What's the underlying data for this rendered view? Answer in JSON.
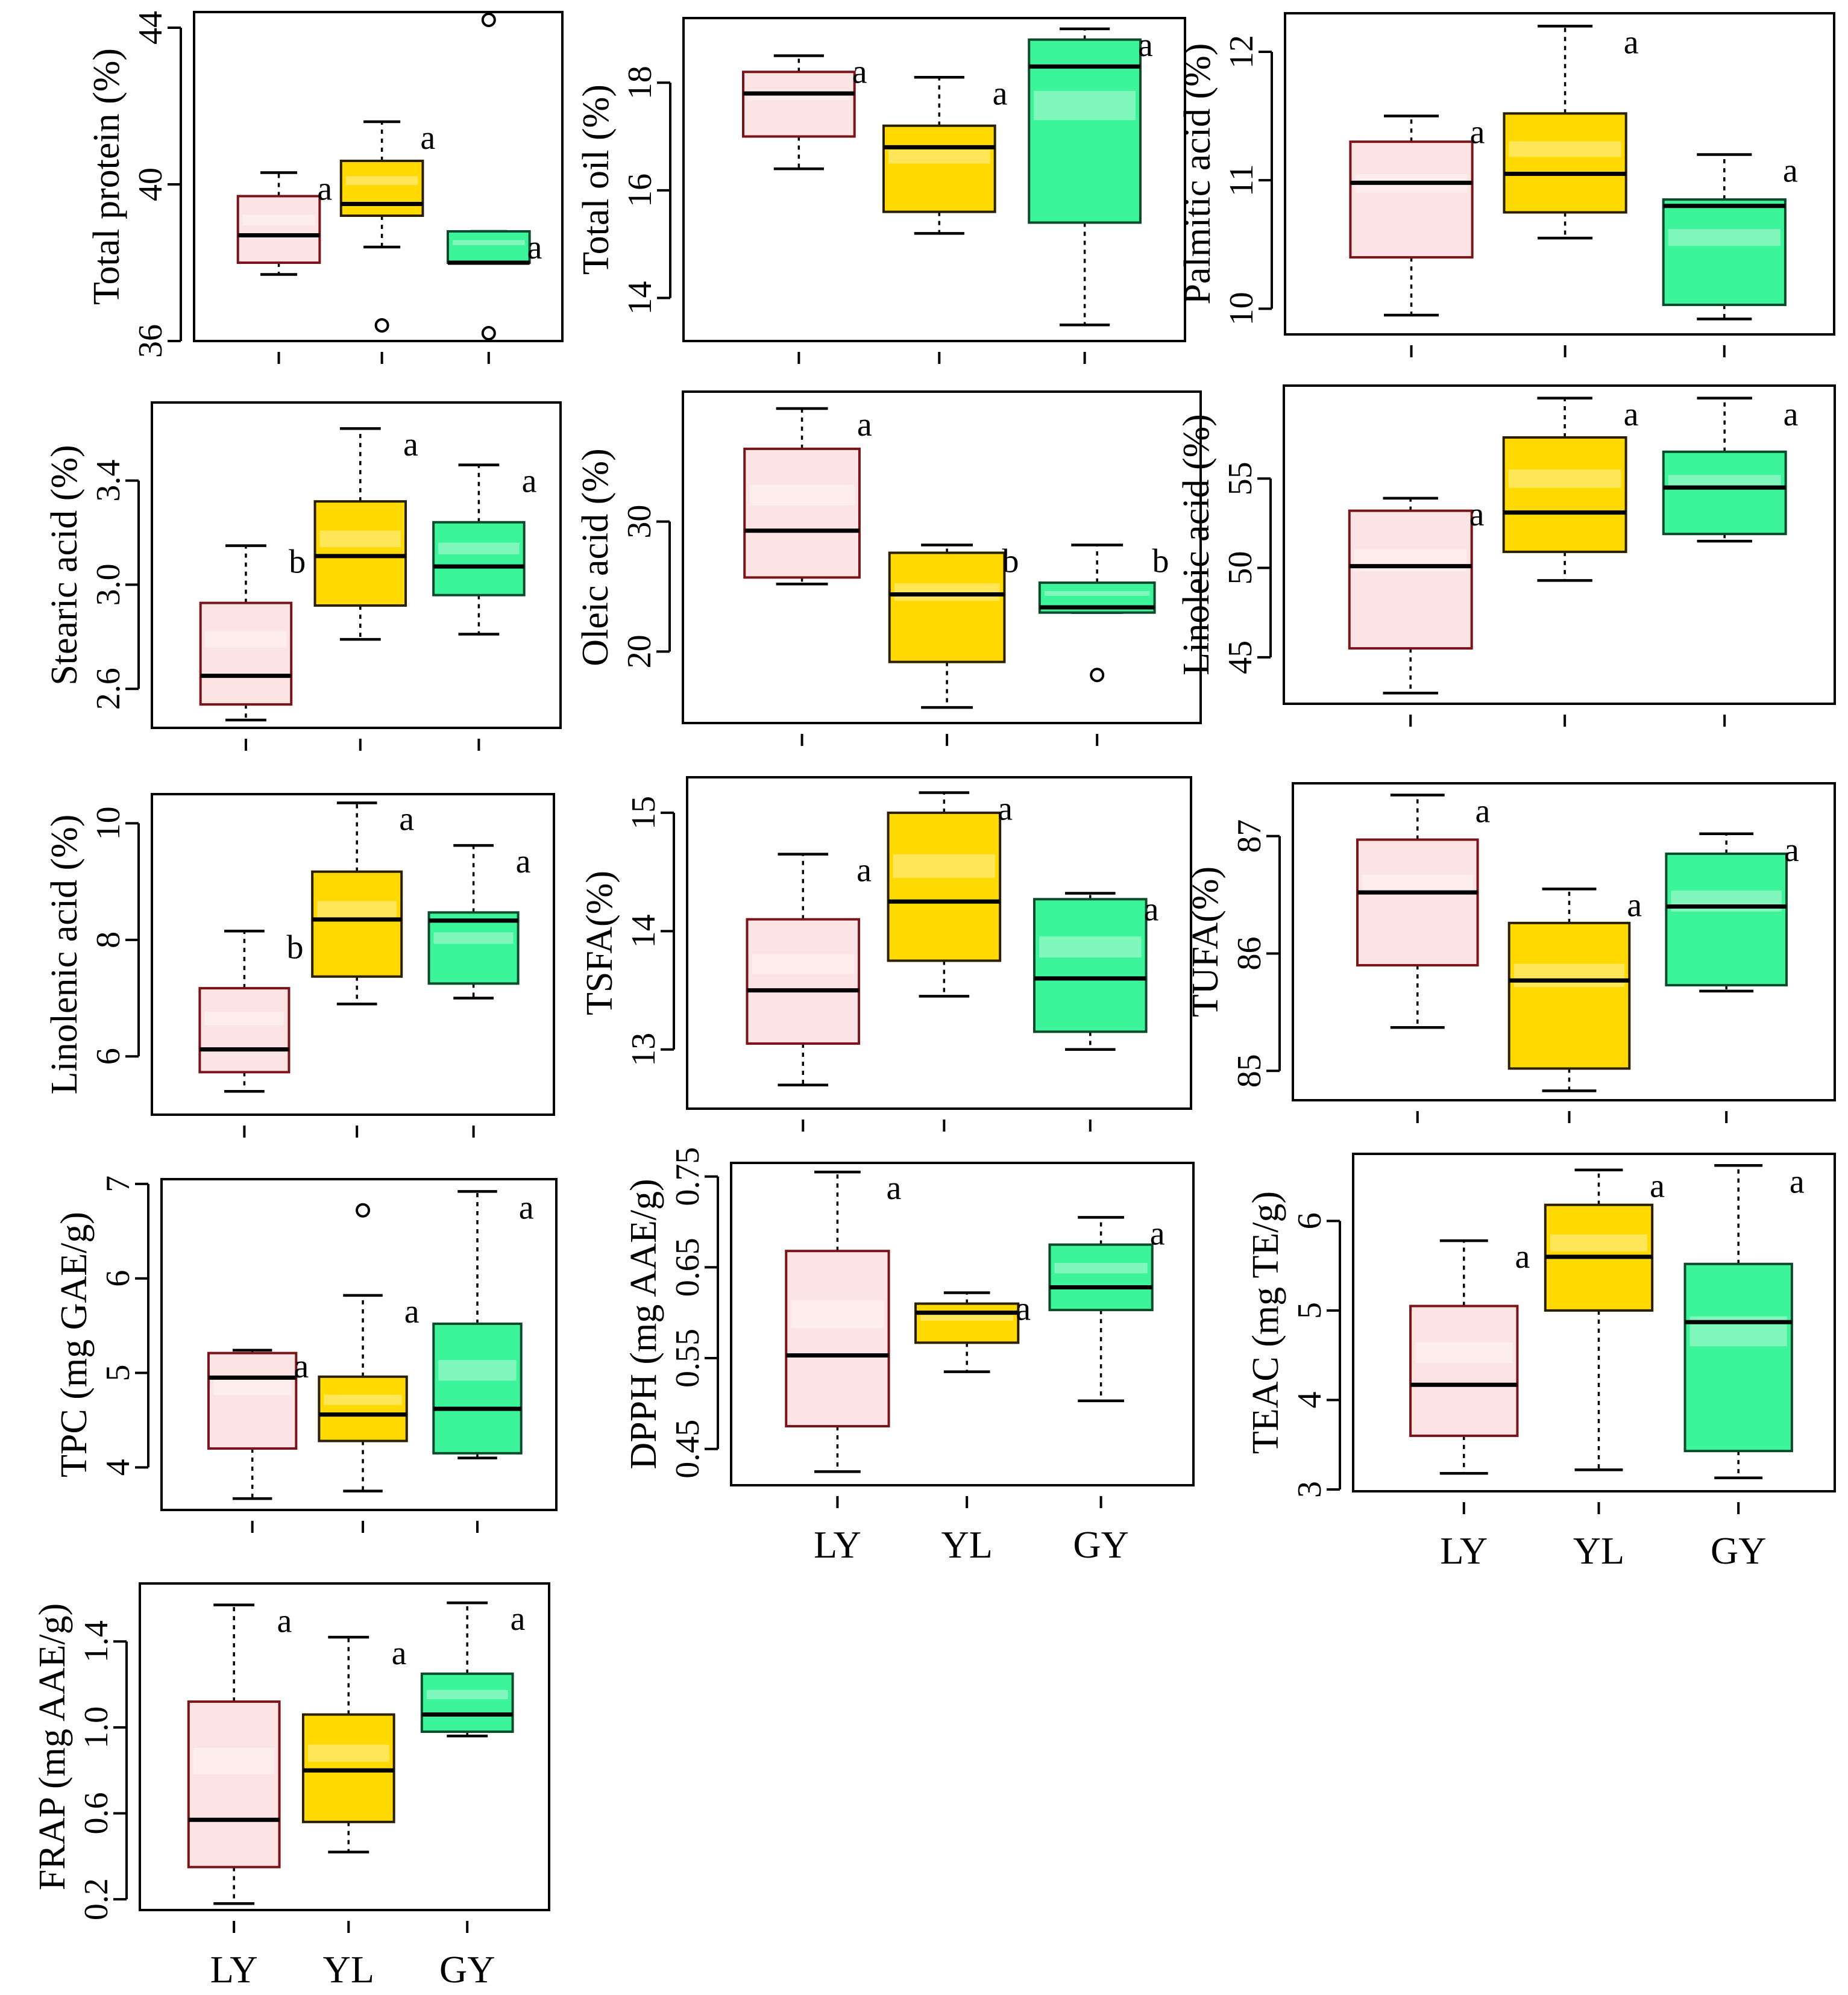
{
  "groups": [
    "LY",
    "YL",
    "GY"
  ],
  "colors": {
    "LY": {
      "fill": "#fde4e4",
      "stroke": "#7a1418"
    },
    "YL": {
      "fill": "#ffd900",
      "stroke": "#2a2000"
    },
    "GY": {
      "fill": "#3cf59a",
      "stroke": "#0b4a2a"
    }
  },
  "chart_data": [
    {
      "type": "box",
      "ylabel": "Total protein (%)",
      "yticks": [
        36,
        40,
        44
      ],
      "ylim": [
        36,
        44.4
      ],
      "show_x_labels": false,
      "boxes": [
        {
          "group": "LY",
          "whisker_low": 37.7,
          "q1": 38.0,
          "median": 38.7,
          "q3": 39.7,
          "whisker_high": 40.3,
          "outliers": [],
          "letter": "a"
        },
        {
          "group": "YL",
          "whisker_low": 38.4,
          "q1": 39.2,
          "median": 39.5,
          "q3": 40.6,
          "whisker_high": 41.6,
          "outliers": [
            36.4
          ],
          "letter": "a"
        },
        {
          "group": "GY",
          "whisker_low": 38.0,
          "q1": 38.0,
          "median": 38.0,
          "q3": 38.8,
          "whisker_high": 38.8,
          "outliers": [
            36.2,
            44.2
          ],
          "letter": "a"
        }
      ]
    },
    {
      "type": "box",
      "ylabel": "Total oil (%)",
      "yticks": [
        14,
        16,
        18
      ],
      "ylim": [
        13.2,
        19.2
      ],
      "show_x_labels": false,
      "boxes": [
        {
          "group": "LY",
          "whisker_low": 16.4,
          "q1": 17.0,
          "median": 17.8,
          "q3": 18.2,
          "whisker_high": 18.5,
          "outliers": [],
          "letter": "a"
        },
        {
          "group": "YL",
          "whisker_low": 15.2,
          "q1": 15.6,
          "median": 16.8,
          "q3": 17.2,
          "whisker_high": 18.1,
          "outliers": [],
          "letter": "a"
        },
        {
          "group": "GY",
          "whisker_low": 13.5,
          "q1": 15.4,
          "median": 18.3,
          "q3": 18.8,
          "whisker_high": 19.0,
          "outliers": [],
          "letter": "a"
        }
      ]
    },
    {
      "type": "box",
      "ylabel": "Palmitic acid (%)",
      "yticks": [
        10,
        11,
        12
      ],
      "ylim": [
        9.8,
        12.3
      ],
      "show_x_labels": false,
      "boxes": [
        {
          "group": "LY",
          "whisker_low": 9.95,
          "q1": 10.4,
          "median": 10.98,
          "q3": 11.3,
          "whisker_high": 11.5,
          "outliers": [],
          "letter": "a"
        },
        {
          "group": "YL",
          "whisker_low": 10.55,
          "q1": 10.75,
          "median": 11.05,
          "q3": 11.52,
          "whisker_high": 12.2,
          "outliers": [],
          "letter": "a"
        },
        {
          "group": "GY",
          "whisker_low": 9.92,
          "q1": 10.03,
          "median": 10.8,
          "q3": 10.85,
          "whisker_high": 11.2,
          "outliers": [],
          "letter": "a"
        }
      ]
    },
    {
      "type": "box",
      "ylabel": "Stearic acid (%)",
      "yticks": [
        2.6,
        3.0,
        3.4
      ],
      "ylim": [
        2.45,
        3.7
      ],
      "show_x_labels": false,
      "boxes": [
        {
          "group": "LY",
          "whisker_low": 2.48,
          "q1": 2.54,
          "median": 2.65,
          "q3": 2.93,
          "whisker_high": 3.15,
          "outliers": [],
          "letter": "b"
        },
        {
          "group": "YL",
          "whisker_low": 2.79,
          "q1": 2.92,
          "median": 3.11,
          "q3": 3.32,
          "whisker_high": 3.6,
          "outliers": [],
          "letter": "a"
        },
        {
          "group": "GY",
          "whisker_low": 2.81,
          "q1": 2.96,
          "median": 3.07,
          "q3": 3.24,
          "whisker_high": 3.46,
          "outliers": [],
          "letter": "a"
        }
      ]
    },
    {
      "type": "box",
      "ylabel": "Oleic acid (%)",
      "yticks": [
        20,
        30
      ],
      "ylim": [
        14.5,
        40.0
      ],
      "show_x_labels": false,
      "boxes": [
        {
          "group": "LY",
          "whisker_low": 25.2,
          "q1": 25.7,
          "median": 29.3,
          "q3": 35.6,
          "whisker_high": 38.7,
          "outliers": [],
          "letter": "a"
        },
        {
          "group": "YL",
          "whisker_low": 15.7,
          "q1": 19.2,
          "median": 24.4,
          "q3": 27.6,
          "whisker_high": 28.2,
          "outliers": [],
          "letter": "b"
        },
        {
          "group": "GY",
          "whisker_low": 23.0,
          "q1": 23.0,
          "median": 23.4,
          "q3": 25.3,
          "whisker_high": 28.2,
          "outliers": [
            18.2
          ],
          "letter": "b"
        }
      ]
    },
    {
      "type": "box",
      "ylabel": "Linoleic acid (%)",
      "yticks": [
        45,
        50,
        55
      ],
      "ylim": [
        42.4,
        60.2
      ],
      "show_x_labels": false,
      "boxes": [
        {
          "group": "LY",
          "whisker_low": 43.0,
          "q1": 45.5,
          "median": 50.1,
          "q3": 53.2,
          "whisker_high": 53.9,
          "outliers": [],
          "letter": "a"
        },
        {
          "group": "YL",
          "whisker_low": 49.3,
          "q1": 50.9,
          "median": 53.1,
          "q3": 57.3,
          "whisker_high": 59.5,
          "outliers": [],
          "letter": "a"
        },
        {
          "group": "GY",
          "whisker_low": 51.5,
          "q1": 51.9,
          "median": 54.5,
          "q3": 56.5,
          "whisker_high": 59.5,
          "outliers": [],
          "letter": "a"
        }
      ]
    },
    {
      "type": "box",
      "ylabel": "Linolenic acid (%)",
      "yticks": [
        6,
        8,
        10
      ],
      "ylim": [
        5.0,
        10.5
      ],
      "show_x_labels": false,
      "boxes": [
        {
          "group": "LY",
          "whisker_low": 5.4,
          "q1": 5.73,
          "median": 6.12,
          "q3": 7.17,
          "whisker_high": 8.15,
          "outliers": [],
          "letter": "b"
        },
        {
          "group": "YL",
          "whisker_low": 6.9,
          "q1": 7.37,
          "median": 8.35,
          "q3": 9.17,
          "whisker_high": 10.35,
          "outliers": [],
          "letter": "a"
        },
        {
          "group": "GY",
          "whisker_low": 7.0,
          "q1": 7.25,
          "median": 8.33,
          "q3": 8.47,
          "whisker_high": 9.62,
          "outliers": [],
          "letter": "a"
        }
      ]
    },
    {
      "type": "box",
      "ylabel": "TSFA(%)",
      "yticks": [
        13,
        14,
        15
      ],
      "ylim": [
        12.5,
        15.3
      ],
      "show_x_labels": false,
      "boxes": [
        {
          "group": "LY",
          "whisker_low": 12.7,
          "q1": 13.05,
          "median": 13.5,
          "q3": 14.1,
          "whisker_high": 14.65,
          "outliers": [],
          "letter": "a"
        },
        {
          "group": "YL",
          "whisker_low": 13.45,
          "q1": 13.75,
          "median": 14.25,
          "q3": 15.0,
          "whisker_high": 15.17,
          "outliers": [],
          "letter": "a"
        },
        {
          "group": "GY",
          "whisker_low": 13.0,
          "q1": 13.15,
          "median": 13.6,
          "q3": 14.27,
          "whisker_high": 14.32,
          "outliers": [],
          "letter": "a"
        }
      ]
    },
    {
      "type": "box",
      "ylabel": "TUFA(%)",
      "yticks": [
        85,
        86,
        87
      ],
      "ylim": [
        84.75,
        87.45
      ],
      "show_x_labels": false,
      "boxes": [
        {
          "group": "LY",
          "whisker_low": 85.37,
          "q1": 85.9,
          "median": 86.52,
          "q3": 86.97,
          "whisker_high": 87.35,
          "outliers": [],
          "letter": "a"
        },
        {
          "group": "YL",
          "whisker_low": 84.83,
          "q1": 85.02,
          "median": 85.77,
          "q3": 86.26,
          "whisker_high": 86.55,
          "outliers": [],
          "letter": "a"
        },
        {
          "group": "GY",
          "whisker_low": 85.68,
          "q1": 85.73,
          "median": 86.4,
          "q3": 86.85,
          "whisker_high": 87.02,
          "outliers": [],
          "letter": "a"
        }
      ]
    },
    {
      "type": "box",
      "ylabel": "TPC (mg GAE/g)",
      "yticks": [
        4,
        5,
        6,
        7
      ],
      "ylim": [
        3.55,
        7.05
      ],
      "show_x_labels": false,
      "boxes": [
        {
          "group": "LY",
          "whisker_low": 3.67,
          "q1": 4.2,
          "median": 4.95,
          "q3": 5.21,
          "whisker_high": 5.24,
          "outliers": [],
          "letter": "a"
        },
        {
          "group": "YL",
          "whisker_low": 3.75,
          "q1": 4.28,
          "median": 4.56,
          "q3": 4.96,
          "whisker_high": 5.82,
          "outliers": [
            6.72
          ],
          "letter": "a"
        },
        {
          "group": "GY",
          "whisker_low": 4.1,
          "q1": 4.15,
          "median": 4.62,
          "q3": 5.52,
          "whisker_high": 6.92,
          "outliers": [],
          "letter": "a"
        }
      ]
    },
    {
      "type": "box",
      "ylabel": "DPPH (mg AAE/g)",
      "yticks": [
        0.45,
        0.55,
        0.65,
        0.75
      ],
      "ylim": [
        0.41,
        0.765
      ],
      "show_x_labels": true,
      "boxes": [
        {
          "group": "LY",
          "whisker_low": 0.425,
          "q1": 0.475,
          "median": 0.553,
          "q3": 0.668,
          "whisker_high": 0.755,
          "outliers": [],
          "letter": "a"
        },
        {
          "group": "YL",
          "whisker_low": 0.535,
          "q1": 0.567,
          "median": 0.6,
          "q3": 0.61,
          "whisker_high": 0.622,
          "outliers": [],
          "letter": "a"
        },
        {
          "group": "GY",
          "whisker_low": 0.503,
          "q1": 0.603,
          "median": 0.628,
          "q3": 0.675,
          "whisker_high": 0.705,
          "outliers": [],
          "letter": "a"
        }
      ]
    },
    {
      "type": "box",
      "ylabel": "TEAC (mg TE/g)",
      "yticks": [
        3,
        4,
        5,
        6
      ],
      "ylim": [
        2.98,
        6.75
      ],
      "show_x_labels": true,
      "boxes": [
        {
          "group": "LY",
          "whisker_low": 3.18,
          "q1": 3.6,
          "median": 4.17,
          "q3": 5.05,
          "whisker_high": 5.78,
          "outliers": [],
          "letter": "a"
        },
        {
          "group": "YL",
          "whisker_low": 3.22,
          "q1": 5.0,
          "median": 5.6,
          "q3": 6.18,
          "whisker_high": 6.57,
          "outliers": [],
          "letter": "a"
        },
        {
          "group": "GY",
          "whisker_low": 3.13,
          "q1": 3.43,
          "median": 4.87,
          "q3": 5.52,
          "whisker_high": 6.62,
          "outliers": [],
          "letter": "a"
        }
      ]
    },
    {
      "type": "box",
      "ylabel": "FRAP  (mg AAE/g)",
      "yticks": [
        0.2,
        0.6,
        1.0,
        1.4
      ],
      "ylim": [
        0.15,
        1.67
      ],
      "show_x_labels": true,
      "boxes": [
        {
          "group": "LY",
          "whisker_low": 0.18,
          "q1": 0.35,
          "median": 0.57,
          "q3": 1.12,
          "whisker_high": 1.57,
          "outliers": [],
          "letter": "a"
        },
        {
          "group": "YL",
          "whisker_low": 0.42,
          "q1": 0.56,
          "median": 0.8,
          "q3": 1.06,
          "whisker_high": 1.42,
          "outliers": [],
          "letter": "a"
        },
        {
          "group": "GY",
          "whisker_low": 0.96,
          "q1": 0.98,
          "median": 1.06,
          "q3": 1.25,
          "whisker_high": 1.58,
          "outliers": [],
          "letter": "a"
        }
      ]
    }
  ]
}
